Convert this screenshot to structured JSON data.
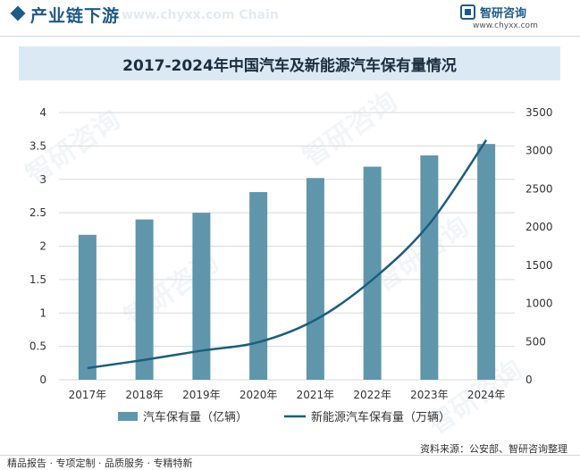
{
  "header": {
    "title": "产业链下游",
    "title_shadow": "www.chyxx.com Chain"
  },
  "logo": {
    "name": "智研咨询",
    "url": "www.chyxx.com"
  },
  "watermark_text": "智研咨询",
  "chart_data": {
    "type": "bar+line",
    "title": "2017-2024年中国汽车及新能源汽车保有量情况",
    "categories": [
      "2017年",
      "2018年",
      "2019年",
      "2020年",
      "2021年",
      "2022年",
      "2023年",
      "2024年"
    ],
    "series": [
      {
        "name": "汽车保有量（亿辆）",
        "type": "bar",
        "axis": "left",
        "color": "#6096ab",
        "values": [
          2.17,
          2.4,
          2.5,
          2.81,
          3.02,
          3.19,
          3.36,
          3.53
        ]
      },
      {
        "name": "新能源汽车保有量（万辆）",
        "type": "line",
        "axis": "right",
        "color": "#1c5e7e",
        "values": [
          153,
          261,
          381,
          492,
          784,
          1310,
          2041,
          3140
        ]
      }
    ],
    "y_left": {
      "min": 0,
      "max": 4,
      "ticks": [
        "0",
        "0.5",
        "1",
        "1.5",
        "2",
        "2.5",
        "3",
        "3.5",
        "4"
      ]
    },
    "y_right": {
      "min": 0,
      "max": 3500,
      "ticks": [
        "0",
        "500",
        "1000",
        "1500",
        "2000",
        "2500",
        "3000",
        "3500"
      ]
    },
    "grid": true,
    "legend": "bottom"
  },
  "footer": {
    "tagline": "精品报告 · 专项定制 · 品质服务 · 专精特新",
    "source": "资料来源：公安部、智研咨询整理"
  }
}
